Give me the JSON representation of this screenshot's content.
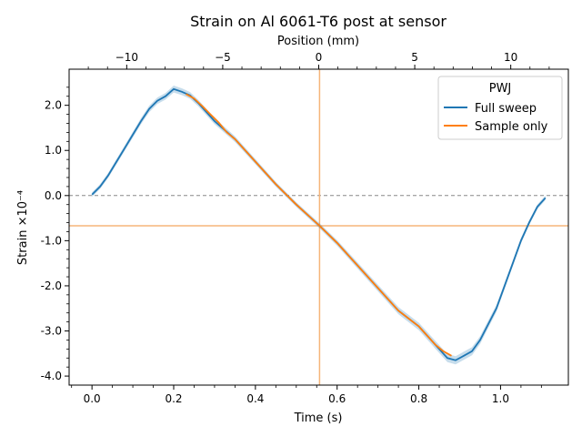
{
  "chart_data": {
    "type": "line",
    "title": "Strain on Al 6061-T6 post at sensor",
    "xlabel": "Time (s)",
    "ylabel": "Strain ×10⁻⁴",
    "top_xlabel": "Position (mm)",
    "xlim": [
      -0.056,
      1.166
    ],
    "ylim": [
      -4.2,
      2.8
    ],
    "top_xlim": [
      -13.0,
      13.0
    ],
    "x_ticks": [
      0.0,
      0.2,
      0.4,
      0.6,
      0.8,
      1.0
    ],
    "x_tick_labels": [
      "0.0",
      "0.2",
      "0.4",
      "0.6",
      "0.8",
      "1.0"
    ],
    "y_ticks": [
      2.0,
      1.0,
      0.0,
      -1.0,
      -2.0,
      -3.0,
      -4.0
    ],
    "y_tick_labels": [
      "2.0",
      "1.0",
      "0.0",
      "-1.0",
      "-2.0",
      "-3.0",
      "-4.0"
    ],
    "top_x_ticks": [
      -10,
      -5,
      0,
      5,
      10
    ],
    "top_x_tick_labels": [
      "−10",
      "−5",
      "0",
      "5",
      "10"
    ],
    "grid": false,
    "legend": {
      "title": "PWJ",
      "position": "top-right"
    },
    "reference_lines": {
      "zero_dashed_y": 0.0,
      "marker_x": 0.557,
      "marker_y": -0.67
    },
    "series": [
      {
        "name": "Full sweep",
        "color": "#1f77b4",
        "x": [
          0.0,
          0.02,
          0.04,
          0.06,
          0.08,
          0.1,
          0.12,
          0.14,
          0.16,
          0.18,
          0.2,
          0.22,
          0.24,
          0.26,
          0.28,
          0.3,
          0.35,
          0.4,
          0.45,
          0.5,
          0.557,
          0.6,
          0.65,
          0.7,
          0.75,
          0.8,
          0.84,
          0.87,
          0.89,
          0.91,
          0.93,
          0.95,
          0.97,
          0.99,
          1.01,
          1.03,
          1.05,
          1.07,
          1.09,
          1.11
        ],
        "y": [
          0.02,
          0.2,
          0.45,
          0.75,
          1.05,
          1.35,
          1.65,
          1.92,
          2.1,
          2.2,
          2.36,
          2.3,
          2.22,
          2.05,
          1.85,
          1.65,
          1.25,
          0.75,
          0.25,
          -0.2,
          -0.67,
          -1.05,
          -1.55,
          -2.05,
          -2.55,
          -2.9,
          -3.3,
          -3.6,
          -3.65,
          -3.55,
          -3.45,
          -3.2,
          -2.85,
          -2.5,
          -2.0,
          -1.5,
          -1.0,
          -0.6,
          -0.25,
          -0.05
        ]
      },
      {
        "name": "Sample only",
        "color": "#ff7f0e",
        "x": [
          0.23,
          0.25,
          0.27,
          0.29,
          0.31,
          0.33,
          0.35,
          0.4,
          0.45,
          0.5,
          0.557,
          0.6,
          0.65,
          0.7,
          0.75,
          0.8,
          0.84,
          0.86,
          0.88
        ],
        "y": [
          2.25,
          2.15,
          1.98,
          1.8,
          1.62,
          1.4,
          1.25,
          0.75,
          0.25,
          -0.2,
          -0.67,
          -1.05,
          -1.55,
          -2.05,
          -2.55,
          -2.9,
          -3.3,
          -3.45,
          -3.55
        ]
      }
    ]
  }
}
